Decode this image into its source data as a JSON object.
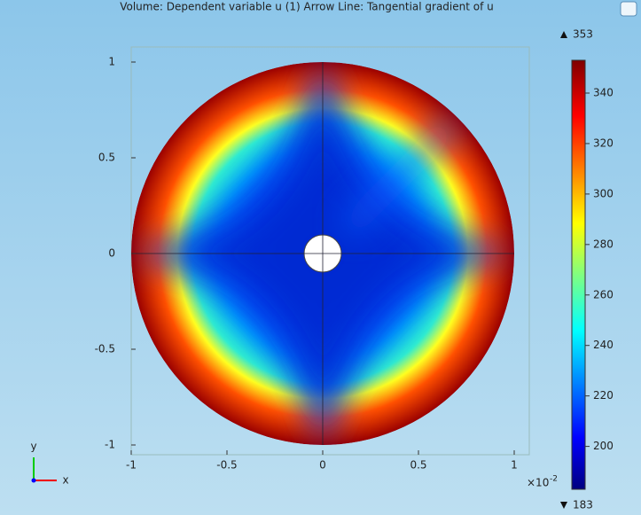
{
  "chart_data": {
    "type": "surface",
    "title": "Volume: Dependent variable u (1)  Arrow Line: Tangential gradient of u",
    "xlim": [
      -1,
      1
    ],
    "ylim": [
      -1,
      1
    ],
    "xticks": [
      -1,
      -0.5,
      0,
      0.5,
      1
    ],
    "yticks": [
      -1,
      -0.5,
      0,
      0.5,
      1
    ],
    "axis_multiplier": {
      "base": "×10",
      "exponent": "-2"
    },
    "colorbar": {
      "min": 183,
      "max": 353,
      "ticks": [
        200,
        220,
        240,
        260,
        280,
        300,
        320,
        340
      ]
    },
    "triad": {
      "x": "x",
      "y": "y"
    }
  }
}
